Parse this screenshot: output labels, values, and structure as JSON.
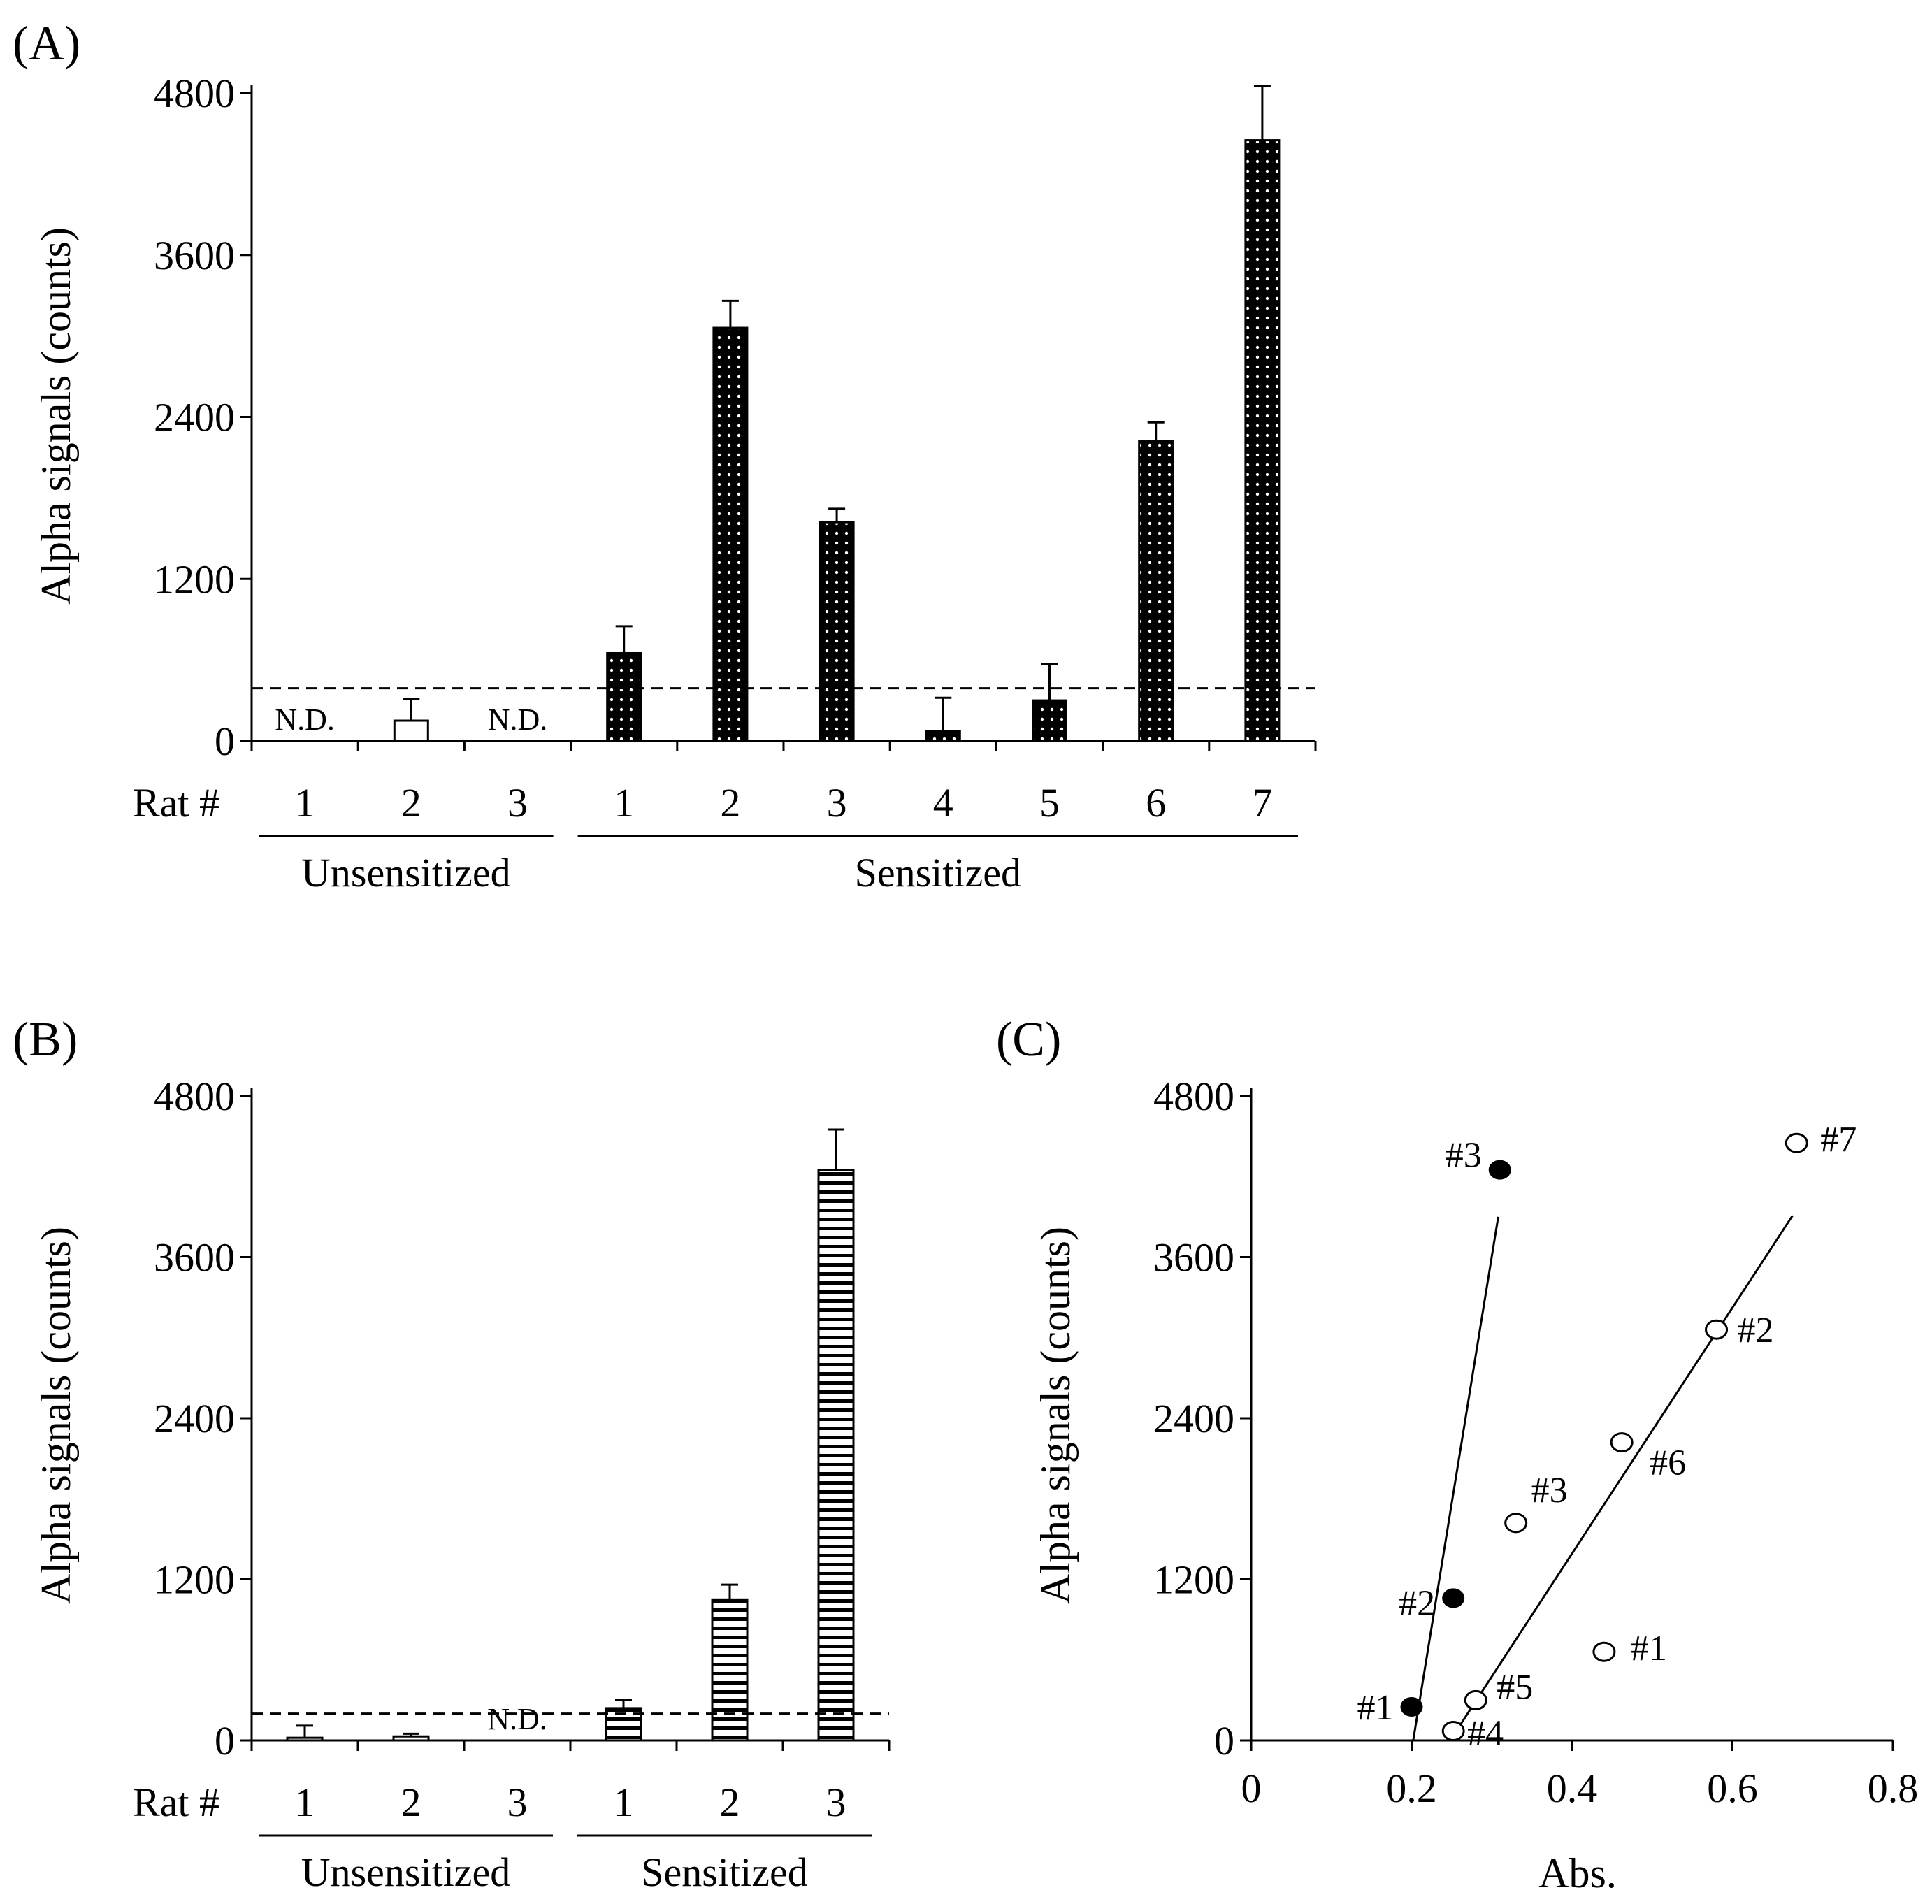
{
  "chart_data": [
    {
      "panel": "(A)",
      "type": "bar",
      "ylabel": "Alpha signals (counts)",
      "ylim": [
        0,
        4800
      ],
      "yticks": [
        0,
        1200,
        2400,
        3600,
        4800
      ],
      "x_prefix": "Rat #",
      "threshold": 390,
      "groups": [
        {
          "name": "Unsensitized",
          "pattern": "open",
          "categories": [
            "1",
            "2",
            "3"
          ],
          "values": [
            null,
            150,
            null
          ],
          "errors": [
            null,
            160,
            null
          ],
          "labels": [
            "N.D.",
            "",
            "N.D."
          ]
        },
        {
          "name": "Sensitized",
          "pattern": "dotted",
          "categories": [
            "1",
            "2",
            "3",
            "4",
            "5",
            "6",
            "7"
          ],
          "values": [
            650,
            3060,
            1620,
            70,
            300,
            2220,
            4450
          ],
          "errors": [
            200,
            200,
            100,
            250,
            270,
            140,
            400
          ],
          "labels": [
            "",
            "",
            "",
            "",
            "",
            "",
            ""
          ]
        }
      ]
    },
    {
      "panel": "(B)",
      "type": "bar",
      "ylabel": "Alpha signals (counts)",
      "ylim": [
        0,
        4800
      ],
      "yticks": [
        0,
        1200,
        2400,
        3600,
        4800
      ],
      "x_prefix": "Rat #",
      "threshold": 200,
      "groups": [
        {
          "name": "Unsensitized",
          "pattern": "open",
          "categories": [
            "1",
            "2",
            "3"
          ],
          "values": [
            20,
            30,
            null
          ],
          "errors": [
            90,
            20,
            null
          ],
          "labels": [
            "",
            "",
            "N.D."
          ]
        },
        {
          "name": "Sensitized",
          "pattern": "striped",
          "categories": [
            "1",
            "2",
            "3"
          ],
          "values": [
            240,
            1050,
            4250
          ],
          "errors": [
            60,
            110,
            300
          ],
          "labels": [
            "",
            "",
            ""
          ]
        }
      ]
    },
    {
      "panel": "(C)",
      "type": "scatter",
      "xlabel": "Abs.",
      "ylabel": "Alpha signals (counts)",
      "xlim": [
        0,
        0.8
      ],
      "ylim": [
        0,
        4800
      ],
      "xticks": [
        0,
        0.2,
        0.4,
        0.6,
        0.8
      ],
      "yticks": [
        0,
        1200,
        2400,
        3600,
        4800
      ],
      "series": [
        {
          "name": "filled",
          "marker": "filled-circle",
          "points": [
            {
              "label": "#1",
              "x": 0.2,
              "y": 250
            },
            {
              "label": "#2",
              "x": 0.252,
              "y": 1060
            },
            {
              "label": "#3",
              "x": 0.31,
              "y": 4250
            }
          ],
          "fit": [
            [
              0.202,
              0
            ],
            [
              0.308,
              3900
            ]
          ]
        },
        {
          "name": "open",
          "marker": "open-circle",
          "points": [
            {
              "label": "#1",
              "x": 0.44,
              "y": 660
            },
            {
              "label": "#2",
              "x": 0.58,
              "y": 3060
            },
            {
              "label": "#3",
              "x": 0.33,
              "y": 1620
            },
            {
              "label": "#4",
              "x": 0.252,
              "y": 70
            },
            {
              "label": "#5",
              "x": 0.28,
              "y": 300
            },
            {
              "label": "#6",
              "x": 0.462,
              "y": 2220
            },
            {
              "label": "#7",
              "x": 0.68,
              "y": 4450
            }
          ],
          "fit": [
            [
              0.248,
              0
            ],
            [
              0.675,
              3910
            ]
          ]
        }
      ]
    }
  ]
}
